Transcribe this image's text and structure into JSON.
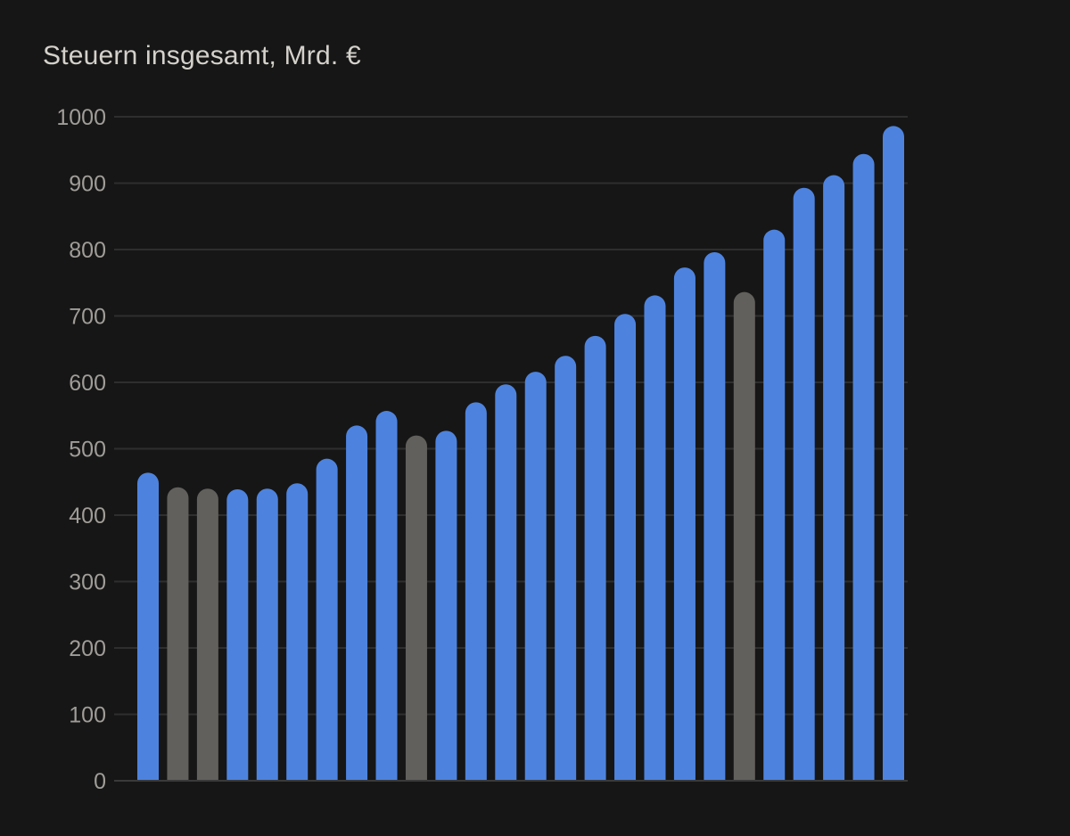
{
  "colors": {
    "background": "#161616",
    "bar_primary": "#4d83df",
    "bar_secondary": "#62605c",
    "gridline": "#2e2e2e",
    "tick_text": "#a09d98",
    "title_text": "#d4d1cb"
  },
  "chart_data": {
    "type": "bar",
    "title": "Steuern insgesamt, Mrd. €",
    "xlabel": "",
    "ylabel": "",
    "ylim": [
      0,
      1000
    ],
    "yticks": [
      0,
      100,
      200,
      300,
      400,
      500,
      600,
      700,
      800,
      900,
      1000
    ],
    "grid": true,
    "legend": "none",
    "values": [
      464,
      442,
      440,
      439,
      440,
      448,
      485,
      535,
      557,
      520,
      527,
      570,
      597,
      616,
      640,
      670,
      703,
      731,
      773,
      796,
      736,
      830,
      893,
      912,
      944,
      986
    ],
    "highlight": [
      "primary",
      "secondary",
      "secondary",
      "primary",
      "primary",
      "primary",
      "primary",
      "primary",
      "primary",
      "secondary",
      "primary",
      "primary",
      "primary",
      "primary",
      "primary",
      "primary",
      "primary",
      "primary",
      "primary",
      "primary",
      "secondary",
      "primary",
      "primary",
      "primary",
      "primary",
      "primary"
    ]
  }
}
